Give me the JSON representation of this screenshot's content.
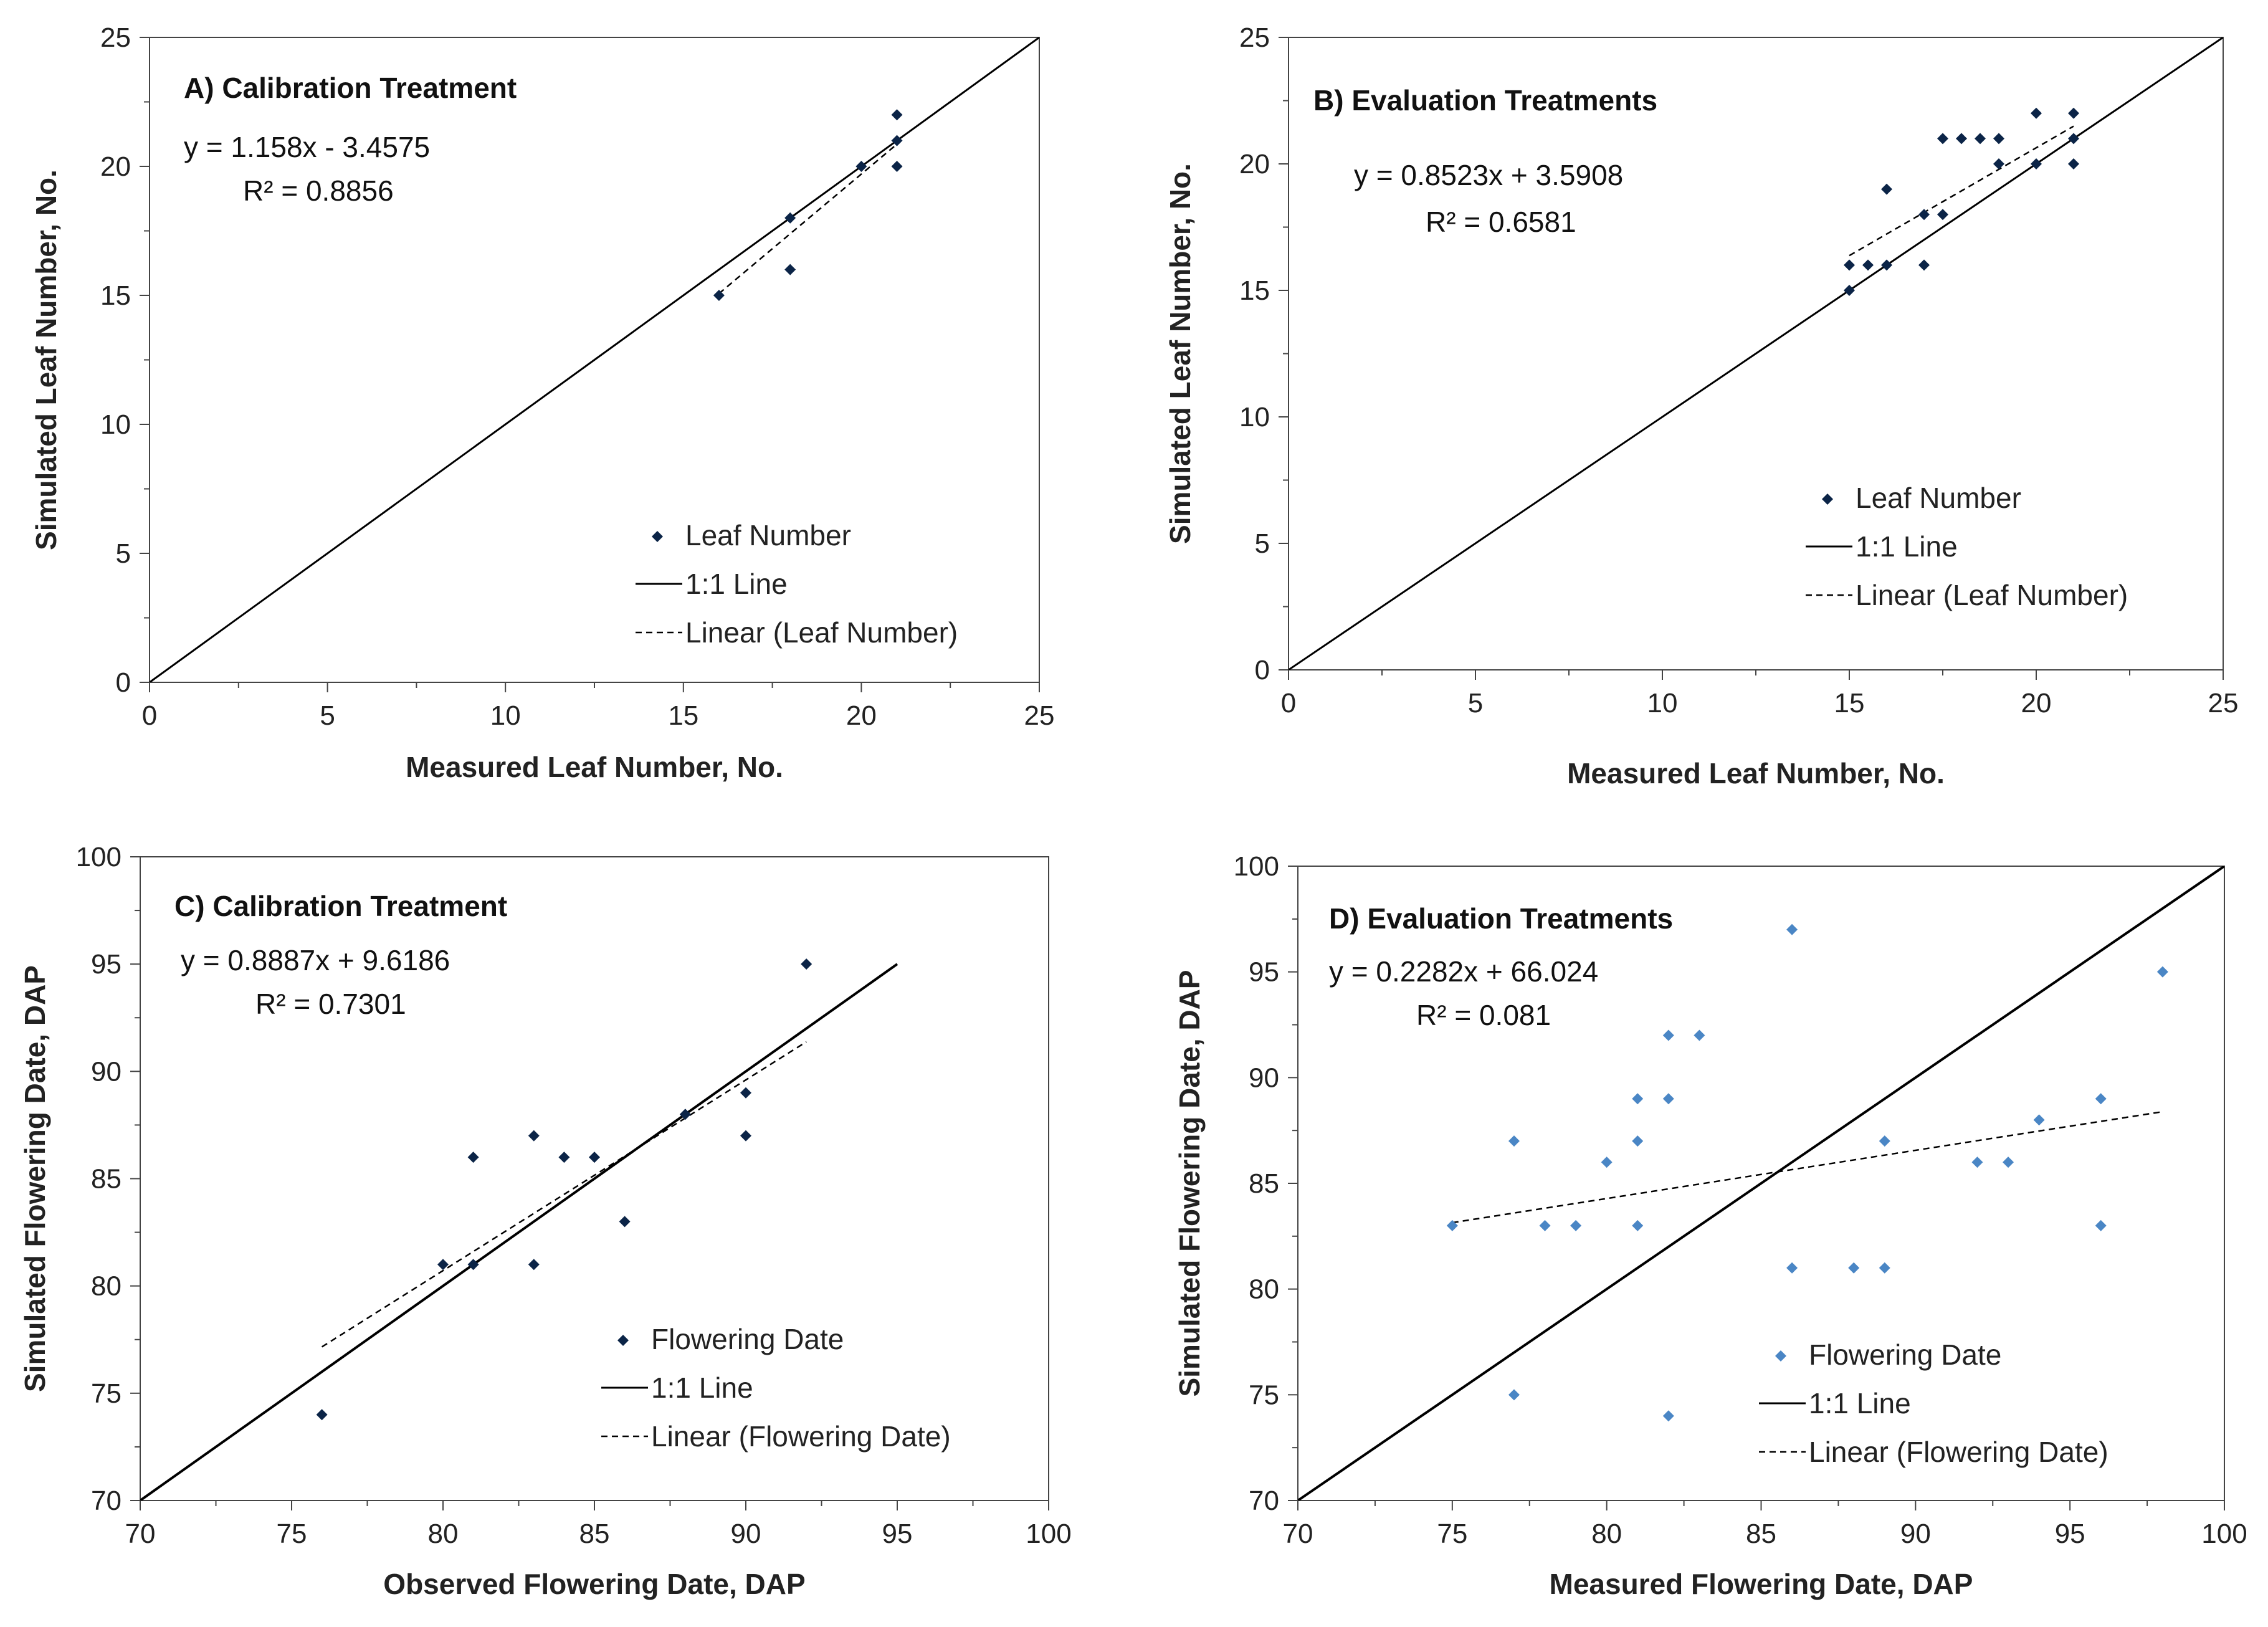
{
  "chart_data": [
    {
      "type": "scatter",
      "title": "A) Calibration Treatment",
      "xlabel": "Measured Leaf Number, No.",
      "ylabel": "Simulated Leaf Number, No.",
      "xlim": [
        0,
        25
      ],
      "ylim": [
        0,
        25
      ],
      "xticks": [
        0,
        5,
        10,
        15,
        20,
        25
      ],
      "yticks": [
        0,
        5,
        10,
        15,
        20,
        25
      ],
      "grid": false,
      "series": [
        {
          "name": "Leaf Number",
          "kind": "points",
          "color": "#0b2447",
          "x": [
            16,
            18,
            18,
            20,
            21,
            21,
            21
          ],
          "y": [
            15,
            18,
            16,
            20,
            22,
            21,
            20
          ]
        },
        {
          "name": "1:1 Line",
          "kind": "identity",
          "color": "#000000",
          "x": [
            0,
            25
          ],
          "y": [
            0,
            25
          ]
        },
        {
          "name": "Linear (Leaf Number)",
          "kind": "trend",
          "color": "#000000",
          "slope": 1.158,
          "intercept": -3.4575,
          "x": [
            16,
            21
          ]
        }
      ],
      "annotations": {
        "equation": "y = 1.158x - 3.4575",
        "r2": "R² = 0.8856"
      },
      "legend": [
        "Leaf Number",
        "1:1 Line",
        "Linear (Leaf Number)"
      ],
      "legend_position": "bottom-right"
    },
    {
      "type": "scatter",
      "title": "B) Evaluation Treatments",
      "xlabel": "Measured Leaf Number, No.",
      "ylabel": "Simulated Leaf Number, No.",
      "xlim": [
        0,
        25
      ],
      "ylim": [
        0,
        25
      ],
      "xticks": [
        0,
        5,
        10,
        15,
        20,
        25
      ],
      "yticks": [
        0,
        5,
        10,
        15,
        20,
        25
      ],
      "grid": false,
      "series": [
        {
          "name": "Leaf Number",
          "kind": "points",
          "color": "#0b2447",
          "x": [
            15,
            15,
            15.5,
            16,
            16,
            17,
            17,
            17.5,
            17.5,
            18,
            18.5,
            19,
            19,
            20,
            20,
            21,
            21,
            21
          ],
          "y": [
            16,
            15,
            16,
            19,
            16,
            18,
            16,
            21,
            18,
            21,
            21,
            21,
            20,
            22,
            20,
            22,
            21,
            20
          ]
        },
        {
          "name": "1:1 Line",
          "kind": "identity",
          "color": "#000000",
          "x": [
            0,
            25
          ],
          "y": [
            0,
            25
          ]
        },
        {
          "name": "Linear (Leaf Number)",
          "kind": "trend",
          "color": "#000000",
          "slope": 0.8523,
          "intercept": 3.5908,
          "x": [
            15,
            21
          ]
        }
      ],
      "annotations": {
        "equation": "y = 0.8523x + 3.5908",
        "r2": "R² = 0.6581"
      },
      "legend": [
        "Leaf Number",
        "1:1 Line",
        "Linear (Leaf Number)"
      ],
      "legend_position": "bottom-right"
    },
    {
      "type": "scatter",
      "title": "C) Calibration Treatment",
      "xlabel": "Observed Flowering Date, DAP",
      "ylabel": "Simulated Flowering Date, DAP",
      "xlim": [
        70,
        100
      ],
      "ylim": [
        70,
        100
      ],
      "xticks": [
        70,
        75,
        80,
        85,
        90,
        95,
        100
      ],
      "yticks": [
        70,
        75,
        80,
        85,
        90,
        95,
        100
      ],
      "grid": false,
      "series": [
        {
          "name": "Flowering Date",
          "kind": "points",
          "color": "#0b2447",
          "x": [
            76,
            80,
            81,
            81,
            83,
            83,
            84,
            85,
            86,
            88,
            90,
            90,
            92
          ],
          "y": [
            74,
            81,
            86,
            81,
            87,
            81,
            86,
            86,
            83,
            88,
            89,
            87,
            95
          ]
        },
        {
          "name": "1:1 Line",
          "kind": "identity",
          "color": "#000000",
          "x": [
            70,
            95
          ],
          "y": [
            70,
            95
          ]
        },
        {
          "name": "Linear (Flowering Date)",
          "kind": "trend",
          "color": "#000000",
          "slope": 0.8887,
          "intercept": 9.6186,
          "x": [
            76,
            92
          ]
        }
      ],
      "annotations": {
        "equation": "y = 0.8887x + 9.6186",
        "r2": "R² = 0.7301"
      },
      "legend": [
        "Flowering Date",
        "1:1 Line",
        "Linear (Flowering Date)"
      ],
      "legend_position": "bottom-right"
    },
    {
      "type": "scatter",
      "title": "D) Evaluation Treatments",
      "xlabel": "Measured Flowering Date, DAP",
      "ylabel": "Simulated Flowering Date, DAP",
      "xlim": [
        70,
        100
      ],
      "ylim": [
        70,
        100
      ],
      "xticks": [
        70,
        75,
        80,
        85,
        90,
        95,
        100
      ],
      "yticks": [
        70,
        75,
        80,
        85,
        90,
        95,
        100
      ],
      "grid": false,
      "series": [
        {
          "name": "Flowering Date",
          "kind": "points",
          "color": "#4a86c5",
          "x": [
            75,
            77,
            77,
            78,
            79,
            80,
            81,
            81,
            81,
            82,
            82,
            82,
            83,
            86,
            86,
            88,
            89,
            89,
            92,
            93,
            94,
            96,
            96,
            98
          ],
          "y": [
            83,
            87,
            75,
            83,
            83,
            86,
            89,
            87,
            83,
            92,
            89,
            74,
            92,
            97,
            81,
            81,
            87,
            81,
            86,
            86,
            88,
            89,
            83,
            95
          ]
        },
        {
          "name": "1:1 Line",
          "kind": "identity",
          "color": "#000000",
          "x": [
            70,
            100
          ],
          "y": [
            70,
            100
          ]
        },
        {
          "name": "Linear (Flowering Date)",
          "kind": "trend",
          "color": "#000000",
          "slope": 0.2282,
          "intercept": 66.024,
          "x": [
            75,
            98
          ]
        }
      ],
      "annotations": {
        "equation": "y = 0.2282x + 66.024",
        "r2": "R² = 0.081"
      },
      "legend": [
        "Flowering Date",
        "1:1 Line",
        "Linear (Flowering Date)"
      ],
      "legend_position": "bottom-right"
    }
  ]
}
